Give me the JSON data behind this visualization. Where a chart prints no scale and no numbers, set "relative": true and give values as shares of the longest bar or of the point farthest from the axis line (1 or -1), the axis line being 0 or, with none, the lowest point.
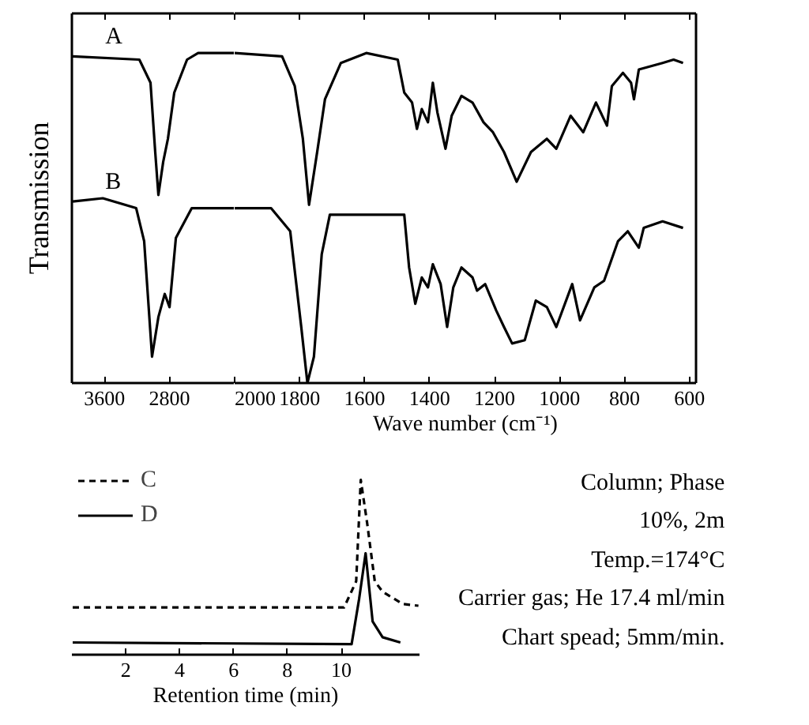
{
  "chart_data": [
    {
      "type": "line",
      "ylabel": "Transmission",
      "relative": true,
      "xlim": [
        4000,
        2000
      ],
      "xticks": [
        3600,
        2800
      ],
      "series": [
        {
          "name": "A",
          "color": "#000000",
          "x": [
            3990,
            3171,
            3034,
            2976,
            2937,
            2878,
            2820,
            2742,
            2585,
            2449,
            2000
          ],
          "values": [
            0.99,
            0.98,
            0.91,
            0.7,
            0.57,
            0.67,
            0.74,
            0.88,
            0.98,
            1.0,
            1.0
          ]
        },
        {
          "name": "B",
          "color": "#000000",
          "x": [
            3990,
            3620,
            3210,
            3112,
            3015,
            2937,
            2859,
            2800,
            2722,
            2527,
            2000
          ],
          "values": [
            0.55,
            0.56,
            0.53,
            0.43,
            0.08,
            0.2,
            0.27,
            0.23,
            0.44,
            0.53,
            0.53
          ]
        }
      ]
    },
    {
      "type": "line",
      "xlabel": "Wave number (cm⁻¹)",
      "relative": true,
      "xlim": [
        2000,
        580
      ],
      "xticks": [
        2000,
        1800,
        1600,
        1400,
        1200,
        1000,
        800,
        600
      ],
      "series": [
        {
          "color": "#000000",
          "x": [
            2000,
            1854,
            1815,
            1790,
            1771,
            1746,
            1722,
            1673,
            1595,
            1498,
            1478,
            1454,
            1439,
            1424,
            1405,
            1390,
            1376,
            1351,
            1332,
            1302,
            1268,
            1234,
            1205,
            1171,
            1132,
            1088,
            1039,
            1010,
            966,
            927,
            888,
            854,
            839,
            805,
            780,
            771,
            756,
            683,
            649,
            620
          ],
          "values": [
            1.0,
            0.99,
            0.9,
            0.74,
            0.54,
            0.7,
            0.86,
            0.97,
            1.0,
            0.98,
            0.88,
            0.85,
            0.77,
            0.83,
            0.79,
            0.91,
            0.82,
            0.71,
            0.81,
            0.87,
            0.85,
            0.79,
            0.76,
            0.7,
            0.61,
            0.7,
            0.74,
            0.71,
            0.81,
            0.76,
            0.85,
            0.78,
            0.9,
            0.94,
            0.91,
            0.86,
            0.95,
            0.97,
            0.98,
            0.97
          ]
        },
        {
          "color": "#000000",
          "x": [
            2000,
            1888,
            1829,
            1795,
            1776,
            1756,
            1732,
            1707,
            1478,
            1463,
            1444,
            1424,
            1405,
            1390,
            1366,
            1346,
            1327,
            1302,
            1268,
            1254,
            1229,
            1195,
            1171,
            1146,
            1107,
            1073,
            1039,
            1010,
            961,
            937,
            893,
            863,
            820,
            790,
            756,
            741,
            683,
            620
          ],
          "values": [
            0.53,
            0.53,
            0.46,
            0.17,
            0.0,
            0.08,
            0.39,
            0.51,
            0.51,
            0.35,
            0.24,
            0.32,
            0.29,
            0.36,
            0.3,
            0.17,
            0.29,
            0.35,
            0.32,
            0.28,
            0.3,
            0.22,
            0.17,
            0.12,
            0.13,
            0.25,
            0.23,
            0.17,
            0.3,
            0.19,
            0.29,
            0.31,
            0.43,
            0.46,
            0.41,
            0.47,
            0.49,
            0.47
          ]
        }
      ]
    },
    {
      "type": "line",
      "xlabel": "Retention time (min)",
      "relative": true,
      "xlim": [
        0,
        12.9
      ],
      "xticks": [
        2,
        4,
        6,
        8,
        10
      ],
      "legend": "top left",
      "annotations": [
        "Column; Phase",
        "10%, 2m",
        "Temp.=174°C",
        "Carrier gas; He 17.4 ml/min",
        "Chart spead; 5mm/min."
      ],
      "series": [
        {
          "name": "C",
          "color": "#000000",
          "line_style": "dashed",
          "x": [
            0.03,
            10.1,
            10.55,
            10.72,
            10.95,
            11.24,
            11.53,
            12.28,
            12.86
          ],
          "values": [
            0.27,
            0.27,
            0.42,
            1.0,
            0.76,
            0.42,
            0.36,
            0.29,
            0.28
          ]
        },
        {
          "name": "D",
          "color": "#000000",
          "line_style": "solid",
          "x": [
            0.03,
            10.38,
            10.66,
            10.9,
            11.16,
            11.53,
            12.19
          ],
          "values": [
            0.07,
            0.06,
            0.32,
            0.58,
            0.19,
            0.1,
            0.07
          ]
        }
      ]
    }
  ]
}
